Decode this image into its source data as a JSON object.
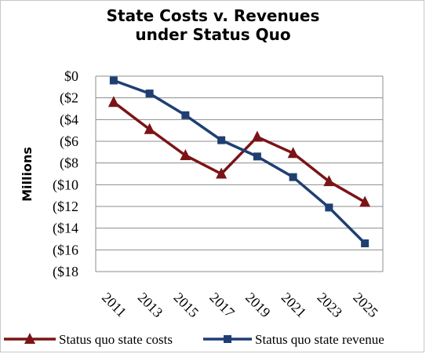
{
  "chart_data": {
    "type": "line",
    "title_line1": "State Costs v. Revenues",
    "title_line2": "under Status Quo",
    "ylabel": "Millions",
    "xlabel": "",
    "x": [
      "2011",
      "2013",
      "2015",
      "2017",
      "2019",
      "2021",
      "2023",
      "2025"
    ],
    "ylim": [
      -18,
      0
    ],
    "yticks": [
      0,
      -2,
      -4,
      -6,
      -8,
      -10,
      -12,
      -14,
      -16,
      -18
    ],
    "ytick_labels": [
      "$0",
      "($2",
      "($4",
      "($6",
      "($8",
      "($10",
      "($12",
      "($14",
      "($16",
      "($18"
    ],
    "grid": "horizontal",
    "legend_position": "bottom",
    "series": [
      {
        "name": "Status quo state costs",
        "color": "#7b1416",
        "marker": "triangle",
        "values": [
          -2.4,
          -4.9,
          -7.3,
          -9.0,
          -5.6,
          -7.1,
          -9.7,
          -11.6
        ]
      },
      {
        "name": "Status quo state revenue",
        "color": "#1f3f73",
        "marker": "square",
        "values": [
          -0.4,
          -1.6,
          -3.6,
          -5.9,
          -7.4,
          -9.3,
          -12.1,
          -15.4
        ]
      }
    ]
  }
}
